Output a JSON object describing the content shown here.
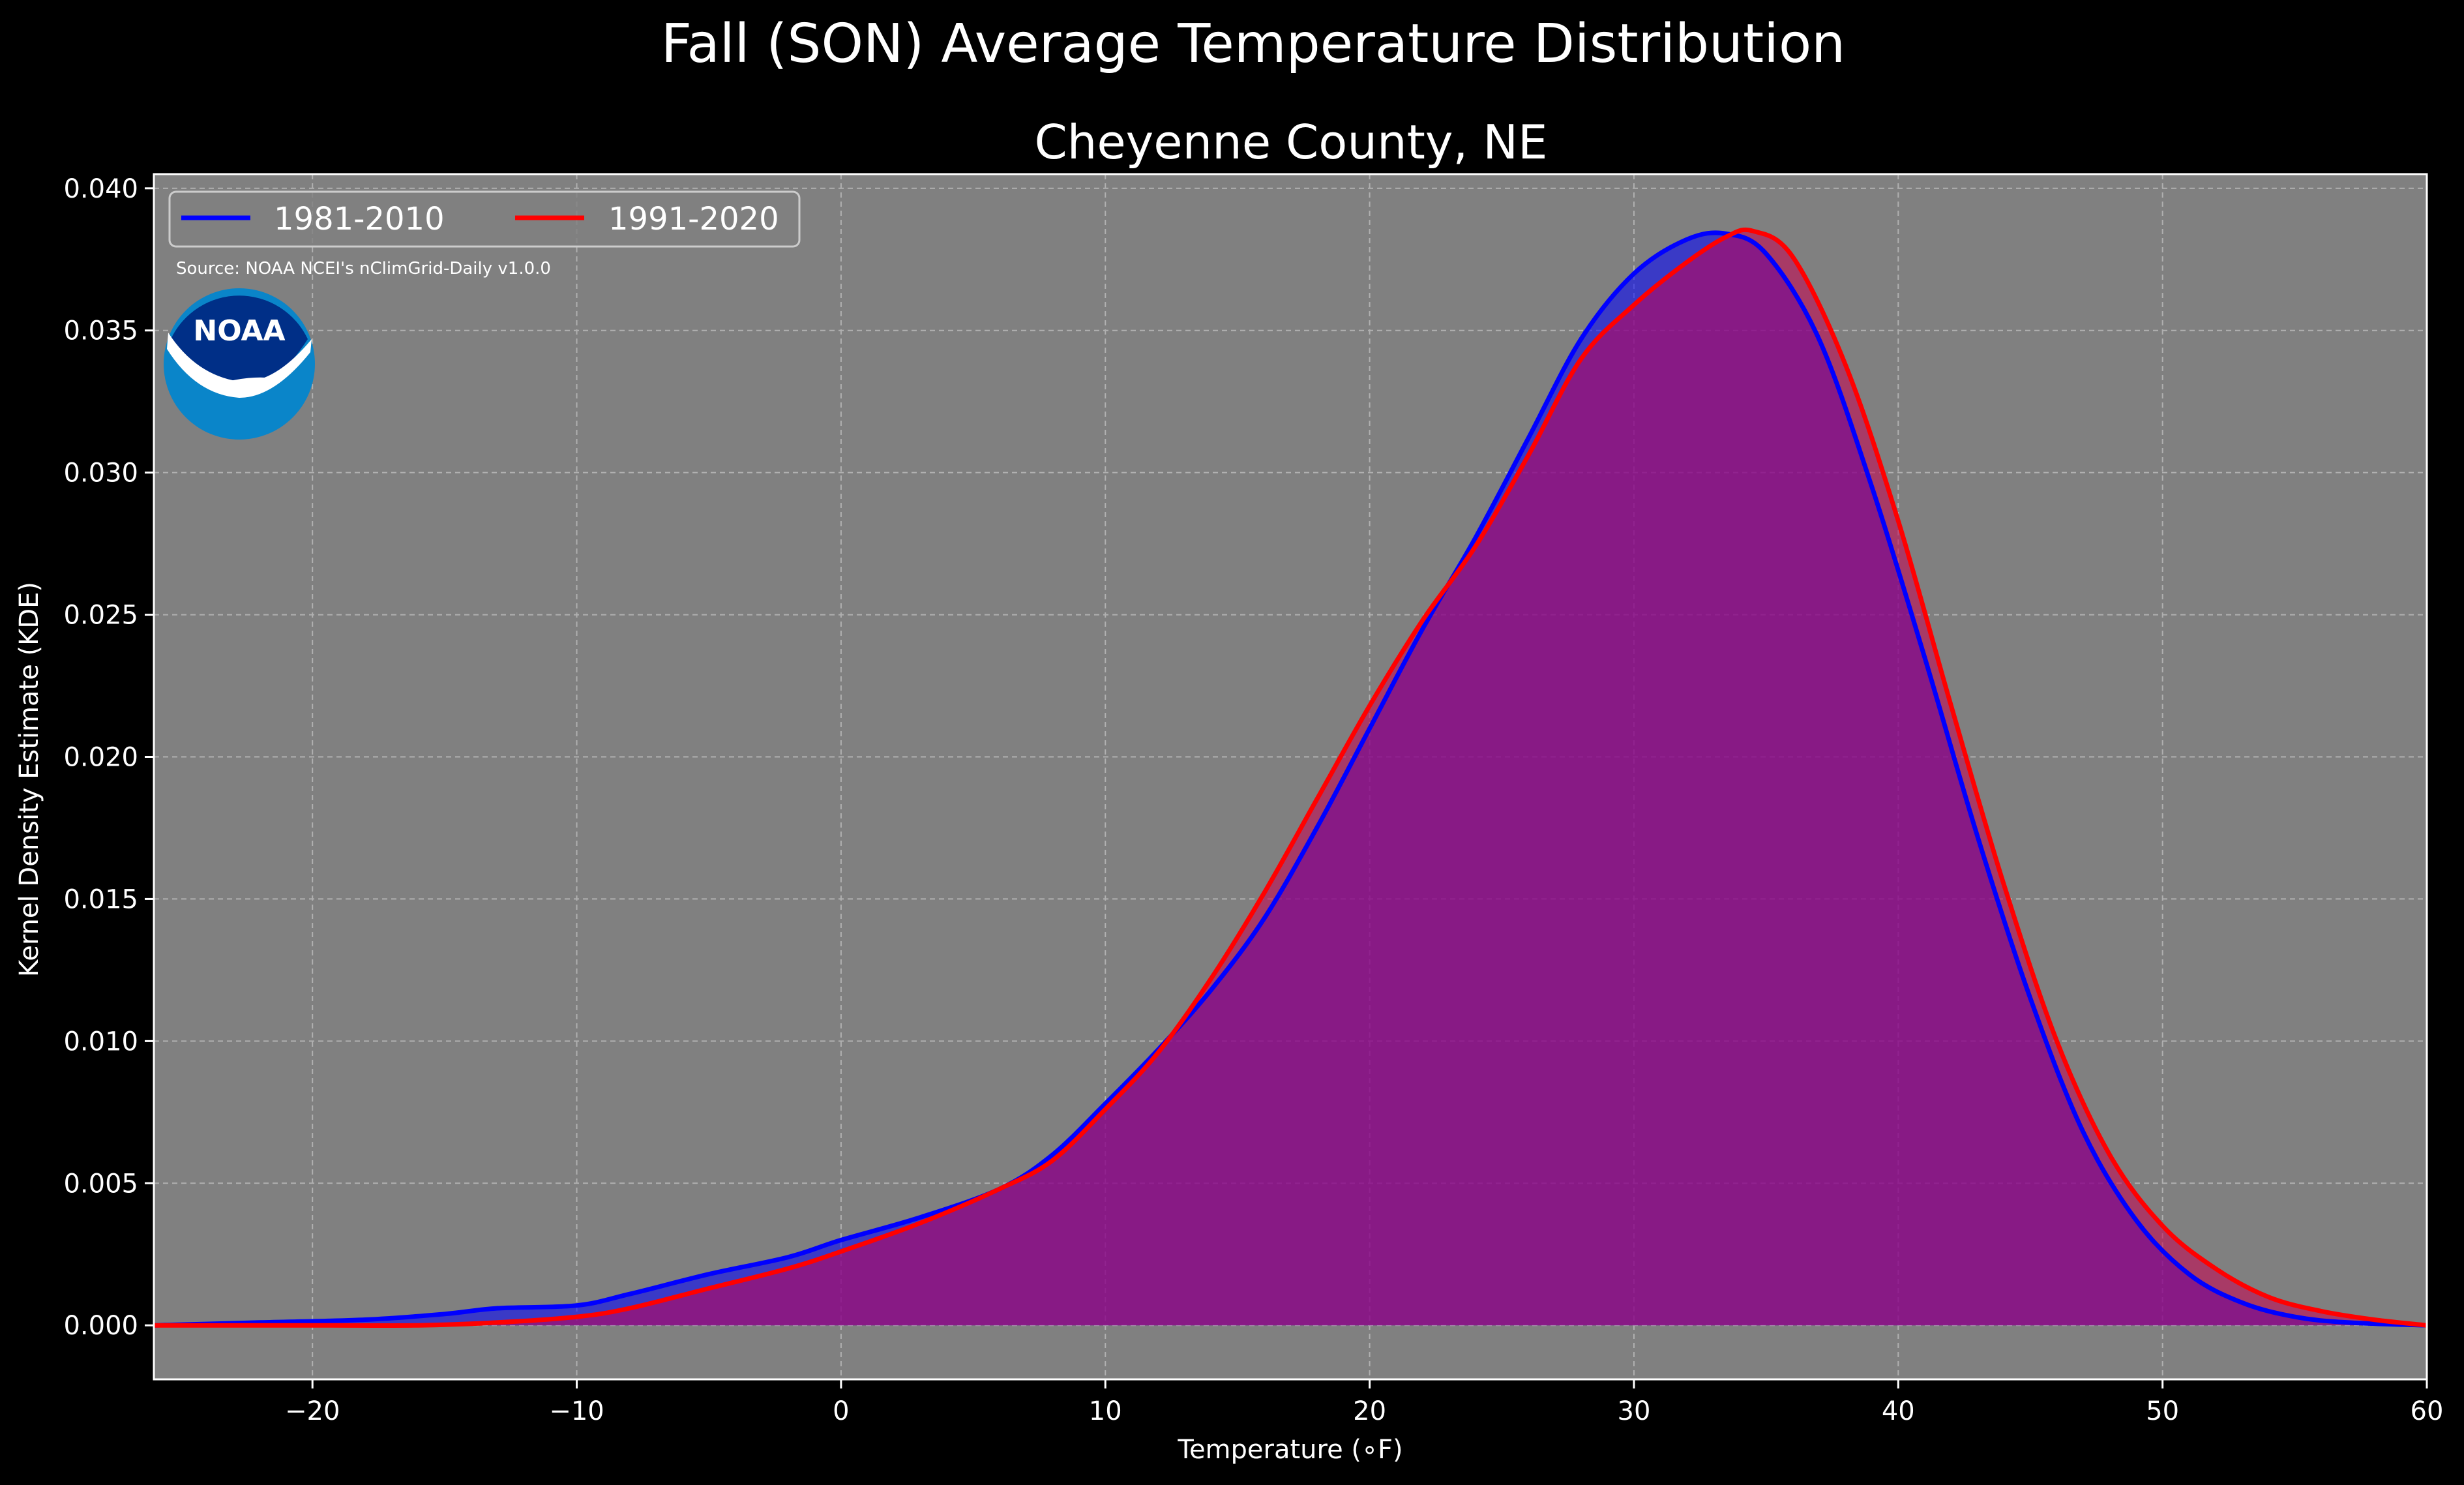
{
  "chart_data": {
    "type": "area",
    "suptitle": "Fall (SON) Average Temperature Distribution",
    "title": "Cheyenne County, NE",
    "xlabel": "Temperature ($^\\circ$F)",
    "xlabel_display": "Temperature (∘F)",
    "ylabel": "Kernel Density Estimate (KDE)",
    "xlim": [
      -26,
      60
    ],
    "ylim": [
      -0.0019,
      0.0405
    ],
    "xticks": [
      -20,
      -10,
      0,
      10,
      20,
      30,
      40,
      50,
      60
    ],
    "xtick_labels": [
      "−20",
      "−10",
      "0",
      "10",
      "20",
      "30",
      "40",
      "50",
      "60"
    ],
    "yticks": [
      0.0,
      0.005,
      0.01,
      0.015,
      0.02,
      0.025,
      0.03,
      0.035,
      0.04
    ],
    "ytick_labels": [
      "0.000",
      "0.005",
      "0.010",
      "0.015",
      "0.020",
      "0.025",
      "0.030",
      "0.035",
      "0.040"
    ],
    "grid": true,
    "background": "#808080",
    "legend_position": "top-left",
    "annotation": "Source: NOAA NCEI's nClimGrid-Daily v1.0.0",
    "logo_text": "NOAA",
    "series": [
      {
        "name": "1981-2010",
        "color": "#0000ff",
        "fill": "rgba(0,0,255,0.55)",
        "points": [
          [
            -26,
            0.0
          ],
          [
            -22,
            0.0001
          ],
          [
            -18,
            0.0002
          ],
          [
            -15,
            0.0004
          ],
          [
            -13,
            0.0006
          ],
          [
            -10,
            0.0007
          ],
          [
            -8,
            0.0011
          ],
          [
            -5,
            0.0018
          ],
          [
            -2,
            0.0024
          ],
          [
            0,
            0.003
          ],
          [
            3,
            0.0038
          ],
          [
            6,
            0.0048
          ],
          [
            8,
            0.006
          ],
          [
            10,
            0.0078
          ],
          [
            12,
            0.0097
          ],
          [
            14,
            0.0118
          ],
          [
            16,
            0.0143
          ],
          [
            18,
            0.0175
          ],
          [
            20,
            0.021
          ],
          [
            22,
            0.0245
          ],
          [
            24,
            0.0277
          ],
          [
            26,
            0.0312
          ],
          [
            28,
            0.0347
          ],
          [
            30,
            0.037
          ],
          [
            32,
            0.0382
          ],
          [
            33.5,
            0.0384
          ],
          [
            35,
            0.0377
          ],
          [
            37,
            0.0347
          ],
          [
            39,
            0.0295
          ],
          [
            41,
            0.0235
          ],
          [
            43,
            0.0172
          ],
          [
            45,
            0.0115
          ],
          [
            47,
            0.0068
          ],
          [
            49,
            0.0037
          ],
          [
            51,
            0.0018
          ],
          [
            53,
            0.0008
          ],
          [
            55,
            0.0003
          ],
          [
            57,
            0.0001
          ],
          [
            60,
            0.0
          ]
        ]
      },
      {
        "name": "1991-2020",
        "color": "#ff0000",
        "fill": "rgba(200,0,80,0.55)",
        "points": [
          [
            -26,
            0.0
          ],
          [
            -20,
            0.0
          ],
          [
            -16,
            0.0
          ],
          [
            -13,
            0.0001
          ],
          [
            -10,
            0.0003
          ],
          [
            -8,
            0.0006
          ],
          [
            -5,
            0.0013
          ],
          [
            -2,
            0.002
          ],
          [
            0,
            0.0026
          ],
          [
            3,
            0.0036
          ],
          [
            6,
            0.0048
          ],
          [
            8,
            0.0058
          ],
          [
            10,
            0.0076
          ],
          [
            12,
            0.0096
          ],
          [
            14,
            0.0122
          ],
          [
            16,
            0.0152
          ],
          [
            18,
            0.0185
          ],
          [
            20,
            0.0218
          ],
          [
            22,
            0.0248
          ],
          [
            24,
            0.0274
          ],
          [
            26,
            0.0306
          ],
          [
            28,
            0.034
          ],
          [
            30,
            0.0359
          ],
          [
            32,
            0.0374
          ],
          [
            33.5,
            0.0383
          ],
          [
            34.5,
            0.0385
          ],
          [
            36,
            0.0376
          ],
          [
            38,
            0.0338
          ],
          [
            40,
            0.0283
          ],
          [
            42,
            0.0218
          ],
          [
            44,
            0.0155
          ],
          [
            46,
            0.01
          ],
          [
            48,
            0.006
          ],
          [
            50,
            0.0035
          ],
          [
            52,
            0.002
          ],
          [
            54,
            0.001
          ],
          [
            56,
            0.0005
          ],
          [
            58,
            0.0002
          ],
          [
            60,
            0.0
          ]
        ]
      }
    ]
  }
}
